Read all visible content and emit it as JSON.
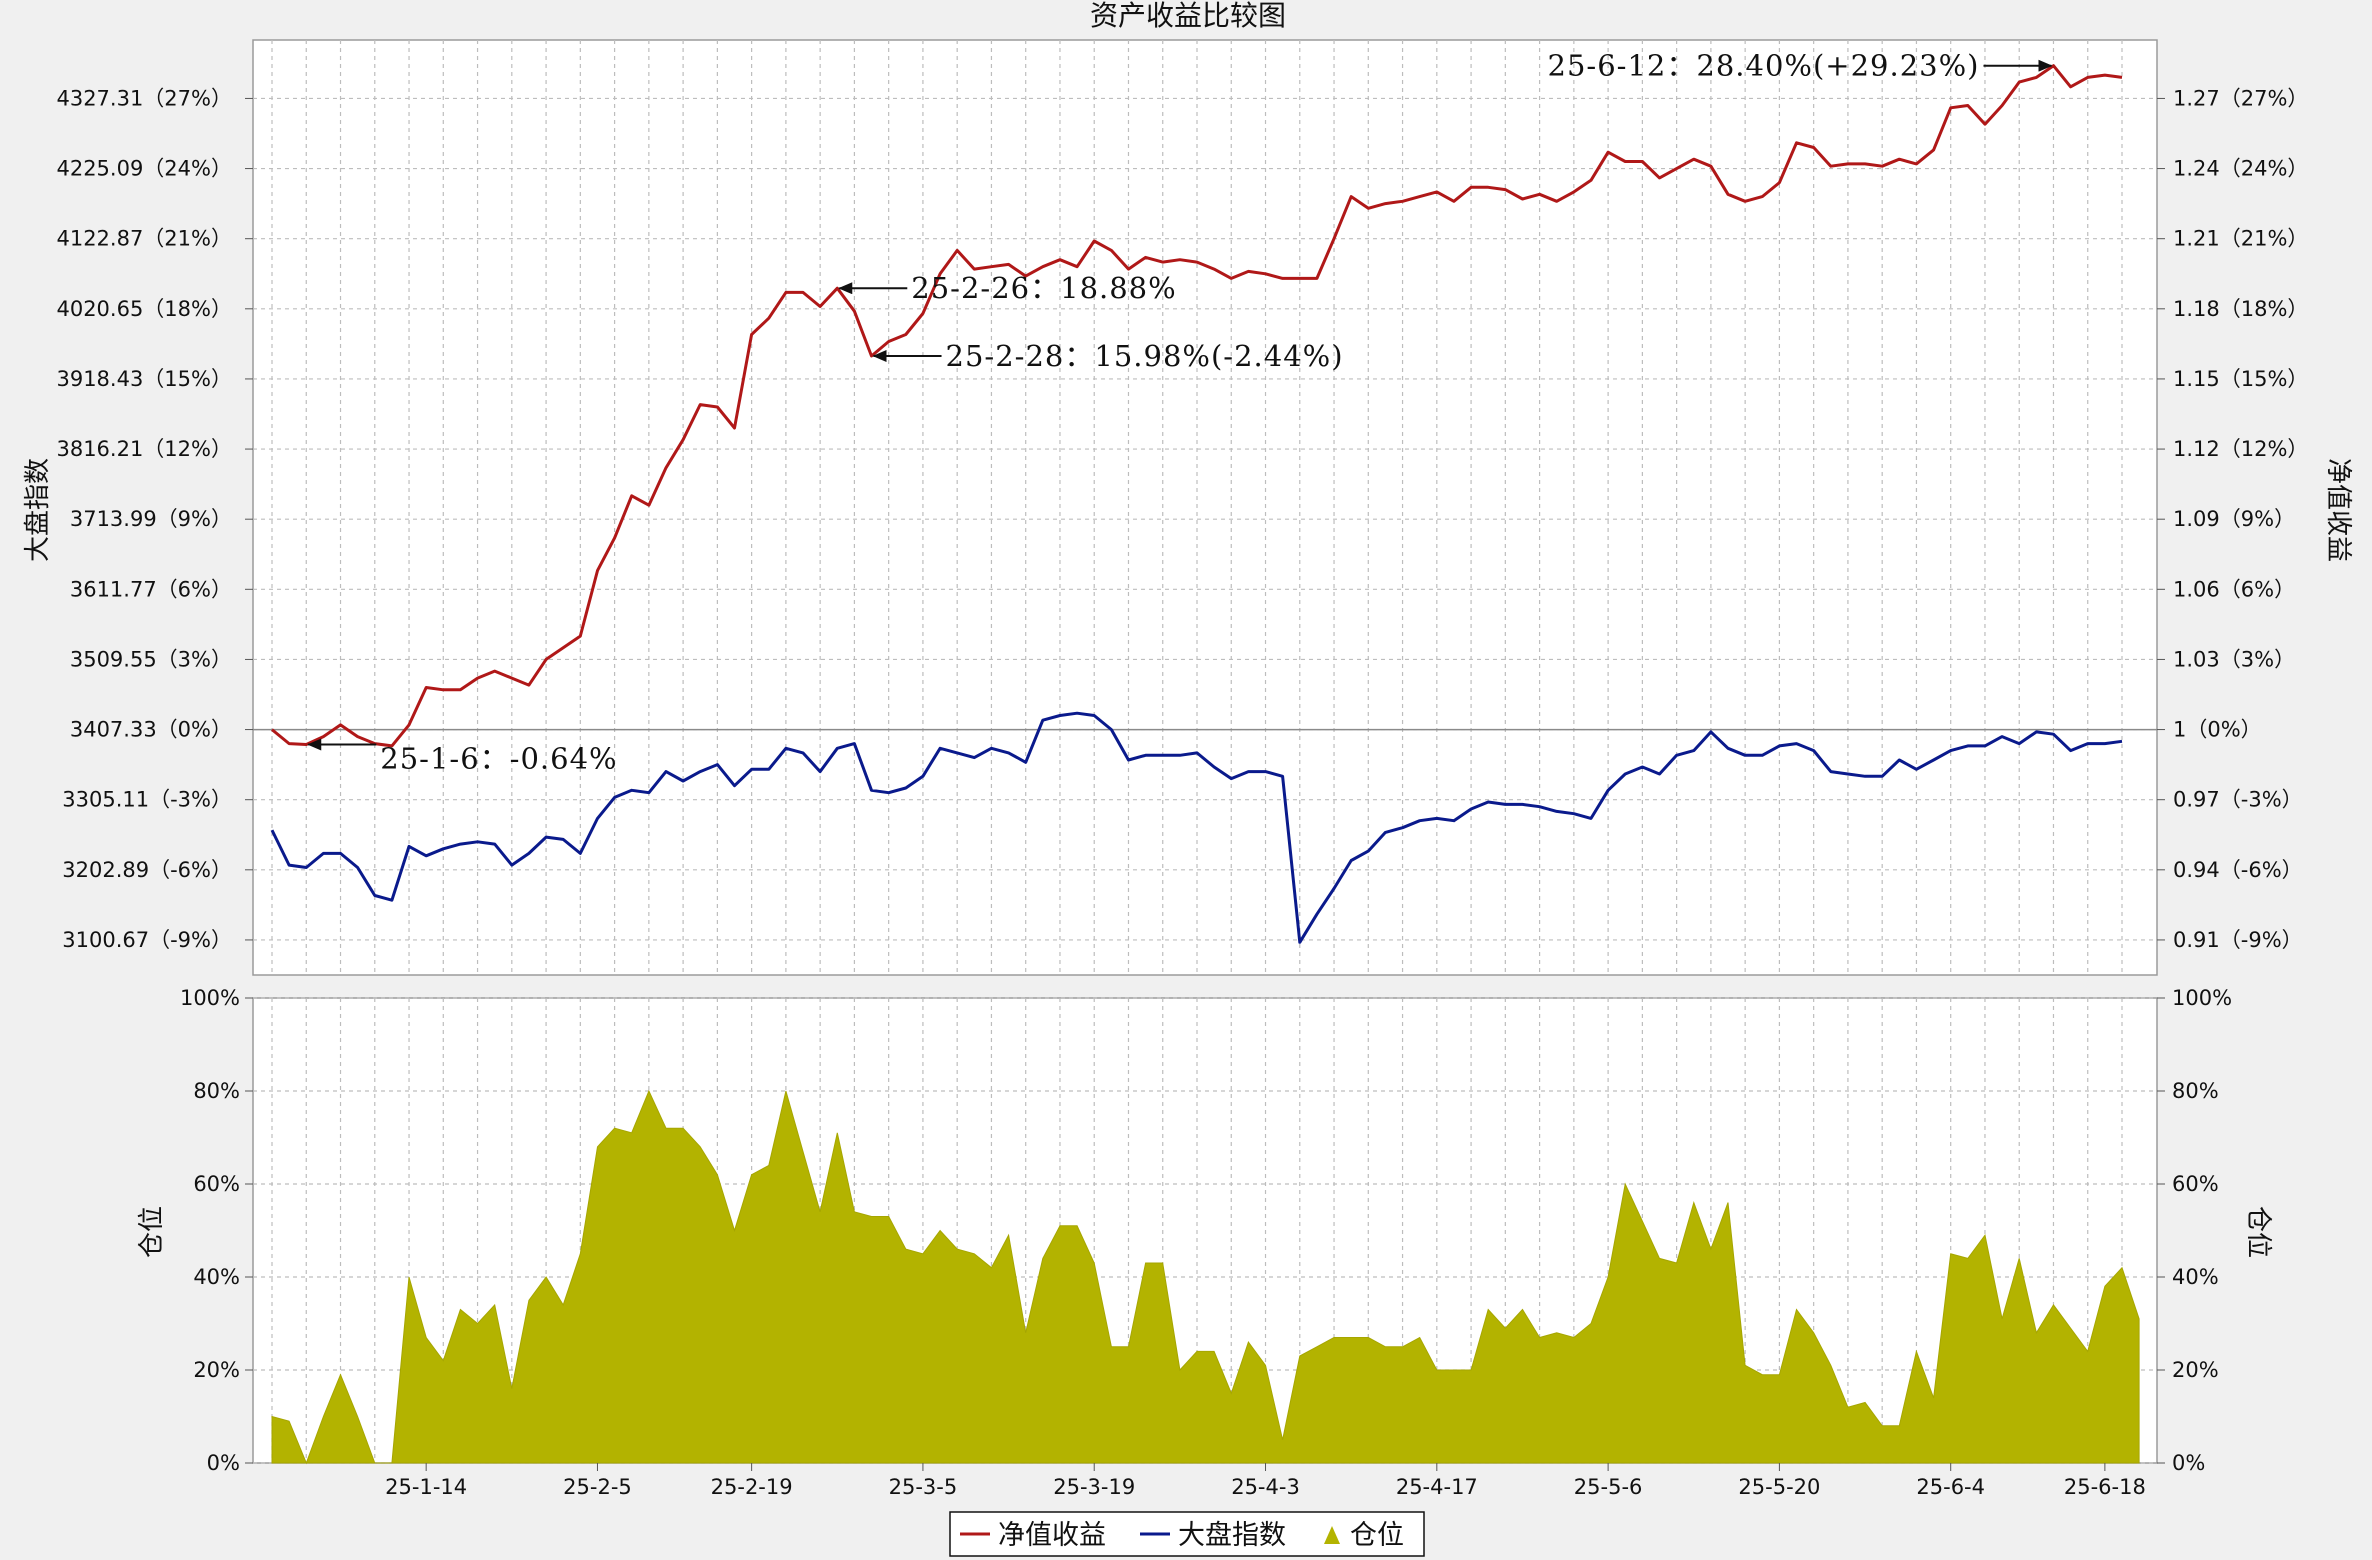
{
  "chart_data": [
    {
      "type": "line",
      "title": "资产收益比较图",
      "ylabel_left": "大盘指数",
      "ylabel_right": "净值收益",
      "y_ticks_left": [
        "4327.31（27%）",
        "4225.09（24%）",
        "4122.87（21%）",
        "4020.65（18%）",
        "3918.43（15%）",
        "3816.21（12%）",
        "3713.99（9%）",
        "3611.77（6%）",
        "3509.55（3%）",
        "3407.33（0%）",
        "3305.11（-3%）",
        "3202.89（-6%）",
        "3100.67（-9%）"
      ],
      "y_ticks_right": [
        "1.27（27%）",
        "1.24（24%）",
        "1.21（21%）",
        "1.18（18%）",
        "1.15（15%）",
        "1.12（12%）",
        "1.09（9%）",
        "1.06（6%）",
        "1.03（3%）",
        "1（0%）",
        "0.97（-3%）",
        "0.94（-6%）",
        "0.91（-9%）"
      ],
      "ylim_percent": [
        -10.5,
        29.5
      ],
      "x_ticks": [
        "25-1-14",
        "25-2-5",
        "25-2-19",
        "25-3-5",
        "25-3-19",
        "25-4-3",
        "25-4-17",
        "25-5-6",
        "25-5-20",
        "25-6-4",
        "25-6-18"
      ],
      "x_tick_positions": [
        9,
        19,
        28,
        38,
        48,
        58,
        68,
        78,
        88,
        98,
        107
      ],
      "series": [
        {
          "name": "净值收益",
          "color": "#b01818",
          "values_percent": [
            0.0,
            -0.6,
            -0.64,
            -0.3,
            0.2,
            -0.3,
            -0.6,
            -0.7,
            0.2,
            1.8,
            1.7,
            1.7,
            2.2,
            2.5,
            2.2,
            1.9,
            3.0,
            3.5,
            4.0,
            6.8,
            8.2,
            10.0,
            9.6,
            11.2,
            12.4,
            13.9,
            13.8,
            12.9,
            16.9,
            17.6,
            18.7,
            18.7,
            18.1,
            18.88,
            17.9,
            15.98,
            16.6,
            16.9,
            17.8,
            19.5,
            20.5,
            19.7,
            19.8,
            19.9,
            19.4,
            19.8,
            20.1,
            19.8,
            20.9,
            20.5,
            19.7,
            20.2,
            20.0,
            20.1,
            20.0,
            19.7,
            19.3,
            19.6,
            19.5,
            19.3,
            19.3,
            19.3,
            21.0,
            22.8,
            22.3,
            22.5,
            22.6,
            22.8,
            23.0,
            22.6,
            23.2,
            23.2,
            23.1,
            22.7,
            22.9,
            22.6,
            23.0,
            23.5,
            24.7,
            24.3,
            24.3,
            23.6,
            24.0,
            24.4,
            24.1,
            22.9,
            22.6,
            22.8,
            23.4,
            25.1,
            24.9,
            24.1,
            24.2,
            24.2,
            24.1,
            24.4,
            24.2,
            24.8,
            26.6,
            26.7,
            25.9,
            26.7,
            27.7,
            27.9,
            28.4,
            27.5,
            27.9,
            28.0,
            27.9
          ]
        },
        {
          "name": "大盘指数",
          "color": "#0a1a8c",
          "values_percent": [
            -4.3,
            -5.8,
            -5.9,
            -5.3,
            -5.3,
            -5.9,
            -7.1,
            -7.3,
            -5.0,
            -5.4,
            -5.1,
            -4.9,
            -4.8,
            -4.9,
            -5.8,
            -5.3,
            -4.6,
            -4.7,
            -5.3,
            -3.8,
            -2.9,
            -2.6,
            -2.7,
            -1.8,
            -2.2,
            -1.8,
            -1.5,
            -2.4,
            -1.7,
            -1.7,
            -0.8,
            -1.0,
            -1.8,
            -0.8,
            -0.6,
            -2.6,
            -2.7,
            -2.5,
            -2.0,
            -0.8,
            -1.0,
            -1.2,
            -0.8,
            -1.0,
            -1.4,
            0.4,
            0.6,
            0.7,
            0.6,
            0.0,
            -1.3,
            -1.1,
            -1.1,
            -1.1,
            -1.0,
            -1.6,
            -2.1,
            -1.8,
            -1.8,
            -2.0,
            -9.1,
            -7.9,
            -6.8,
            -5.6,
            -5.2,
            -4.4,
            -4.2,
            -3.9,
            -3.8,
            -3.9,
            -3.4,
            -3.1,
            -3.2,
            -3.2,
            -3.3,
            -3.5,
            -3.6,
            -3.8,
            -2.6,
            -1.9,
            -1.6,
            -1.9,
            -1.1,
            -0.9,
            -0.1,
            -0.8,
            -1.1,
            -1.1,
            -0.7,
            -0.6,
            -0.9,
            -1.8,
            -1.9,
            -2.0,
            -2.0,
            -1.3,
            -1.7,
            -1.3,
            -0.9,
            -0.7,
            -0.7,
            -0.3,
            -0.6,
            -0.1,
            -0.2,
            -0.9,
            -0.6,
            -0.6,
            -0.5
          ]
        }
      ],
      "annotations": [
        {
          "text": "25-1-6：-0.64%",
          "index": 2
        },
        {
          "text": "25-2-26：18.88%",
          "index": 33
        },
        {
          "text": "25-2-28：15.98%(-2.44%)",
          "index": 35
        },
        {
          "text": "25-6-12：28.40%(+29.23%)",
          "index": 104
        }
      ]
    },
    {
      "type": "area",
      "ylabel_left": "仓位",
      "ylabel_right": "仓位",
      "y_ticks": [
        "100%",
        "80%",
        "60%",
        "40%",
        "20%",
        "0%"
      ],
      "ylim_percent": [
        0,
        100
      ],
      "series": [
        {
          "name": "仓位",
          "color": "#b3b300",
          "values_percent": [
            10,
            9,
            0,
            10,
            19,
            10,
            0,
            0,
            40,
            27,
            22,
            33,
            30,
            34,
            16,
            35,
            40,
            34,
            45,
            68,
            72,
            71,
            80,
            72,
            72,
            68,
            62,
            50,
            62,
            64,
            80,
            67,
            54,
            71,
            54,
            53,
            53,
            46,
            45,
            50,
            46,
            45,
            42,
            49,
            28,
            44,
            51,
            51,
            43,
            25,
            25,
            43,
            43,
            20,
            24,
            24,
            15,
            26,
            21,
            5,
            23,
            25,
            27,
            27,
            27,
            25,
            25,
            27,
            20,
            20,
            20,
            33,
            29,
            33,
            27,
            28,
            27,
            30,
            40,
            60,
            52,
            44,
            43,
            56,
            46,
            56,
            21,
            19,
            19,
            33,
            28,
            21,
            12,
            13,
            8,
            8,
            24,
            14,
            45,
            44,
            49,
            31,
            44,
            28,
            34,
            29,
            24,
            38,
            42,
            31
          ]
        }
      ]
    }
  ],
  "legend": [
    {
      "label": "净值收益",
      "color": "#b01818",
      "symbol": "line"
    },
    {
      "label": "大盘指数",
      "color": "#0a1a8c",
      "symbol": "line"
    },
    {
      "label": "仓位",
      "color": "#b3b300",
      "symbol": "area"
    }
  ]
}
